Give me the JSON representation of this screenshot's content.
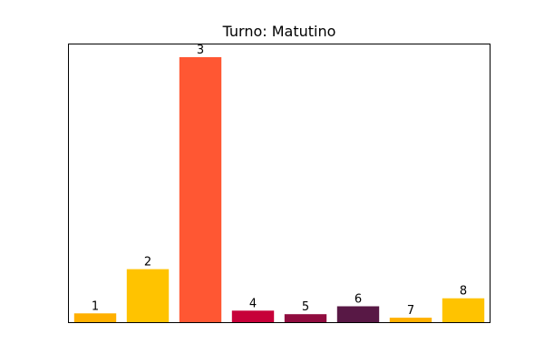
{
  "chart_data": {
    "type": "bar",
    "title": "Turno: Matutino",
    "xlabel": "",
    "ylabel": "",
    "ylim": [
      0,
      300
    ],
    "show_axes_ticks": false,
    "grid": false,
    "bars": [
      {
        "label": "1",
        "value": 10,
        "color": "#FFB000"
      },
      {
        "label": "2",
        "value": 60,
        "color": "#FFC300"
      },
      {
        "label": "3",
        "value": 300,
        "color": "#FF5733"
      },
      {
        "label": "4",
        "value": 13,
        "color": "#C70039"
      },
      {
        "label": "5",
        "value": 9,
        "color": "#900C3F"
      },
      {
        "label": "6",
        "value": 18,
        "color": "#581845"
      },
      {
        "label": "7",
        "value": 5,
        "color": "#FFB000"
      },
      {
        "label": "8",
        "value": 27,
        "color": "#FFC300"
      }
    ]
  }
}
